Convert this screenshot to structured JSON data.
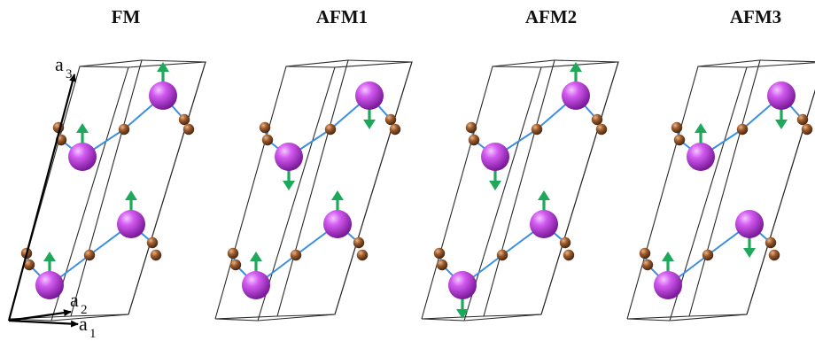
{
  "colors": {
    "cell_edge": "#2a2a2a",
    "bond": "#3b8fe0",
    "metal_atom": "#c23fe6",
    "ligand_atom": "#8a4b20",
    "spin_arrow": "#1ea85a",
    "lattice_vector": "#000000"
  },
  "panels": [
    {
      "title": "FM",
      "atoms": {
        "metal_top": "up",
        "metal_mid": "up",
        "metal_low": "up",
        "metal_bottom": "up"
      }
    },
    {
      "title": "AFM1",
      "atoms": {
        "metal_top": "down",
        "metal_mid": "down",
        "metal_low": "up",
        "metal_bottom": "up"
      }
    },
    {
      "title": "AFM2",
      "atoms": {
        "metal_top": "up",
        "metal_mid": "down",
        "metal_low": "up",
        "metal_bottom": "down"
      }
    },
    {
      "title": "AFM3",
      "atoms": {
        "metal_top": "down",
        "metal_mid": "up",
        "metal_low": "down",
        "metal_bottom": "up"
      }
    }
  ],
  "lattice_vectors": {
    "a1": {
      "letter": "a",
      "subscript": "1"
    },
    "a2": {
      "letter": "a",
      "subscript": "2"
    },
    "a3": {
      "letter": "a",
      "subscript": "3"
    }
  }
}
